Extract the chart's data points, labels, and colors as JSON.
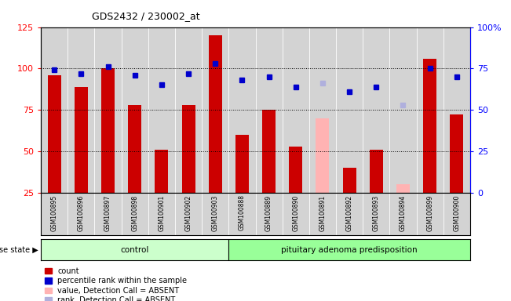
{
  "title": "GDS2432 / 230002_at",
  "samples": [
    "GSM100895",
    "GSM100896",
    "GSM100897",
    "GSM100898",
    "GSM100901",
    "GSM100902",
    "GSM100903",
    "GSM100888",
    "GSM100889",
    "GSM100890",
    "GSM100891",
    "GSM100892",
    "GSM100893",
    "GSM100894",
    "GSM100899",
    "GSM100900"
  ],
  "bar_values": [
    96,
    89,
    100,
    78,
    51,
    78,
    120,
    60,
    75,
    53,
    0,
    40,
    51,
    0,
    106,
    72
  ],
  "absent_bar_values": [
    0,
    0,
    0,
    0,
    0,
    0,
    0,
    0,
    0,
    0,
    70,
    0,
    0,
    30,
    0,
    0
  ],
  "rank_values": [
    74,
    72,
    76,
    71,
    65,
    72,
    78,
    68,
    70,
    64,
    68,
    61,
    64,
    0,
    75,
    70
  ],
  "rank_absent_values": [
    0,
    0,
    0,
    0,
    0,
    0,
    0,
    0,
    0,
    0,
    66,
    0,
    0,
    53,
    0,
    0
  ],
  "control_count": 7,
  "disease_state_label": "disease state",
  "group1_label": "control",
  "group2_label": "pituitary adenoma predisposition",
  "ylim_left": [
    25,
    125
  ],
  "ylim_right": [
    0,
    100
  ],
  "yticks_left": [
    25,
    50,
    75,
    100,
    125
  ],
  "yticks_right": [
    0,
    25,
    50,
    75,
    100
  ],
  "bar_color": "#cc0000",
  "bar_absent_color": "#ffb3b3",
  "rank_color": "#0000cc",
  "rank_absent_color": "#b0b0dd",
  "control_bg": "#ccffcc",
  "disease_bg": "#99ff99",
  "sample_bg": "#d3d3d3",
  "legend_items": [
    "count",
    "percentile rank within the sample",
    "value, Detection Call = ABSENT",
    "rank, Detection Call = ABSENT"
  ],
  "legend_colors": [
    "#cc0000",
    "#0000cc",
    "#ffb3b3",
    "#b0b0dd"
  ]
}
